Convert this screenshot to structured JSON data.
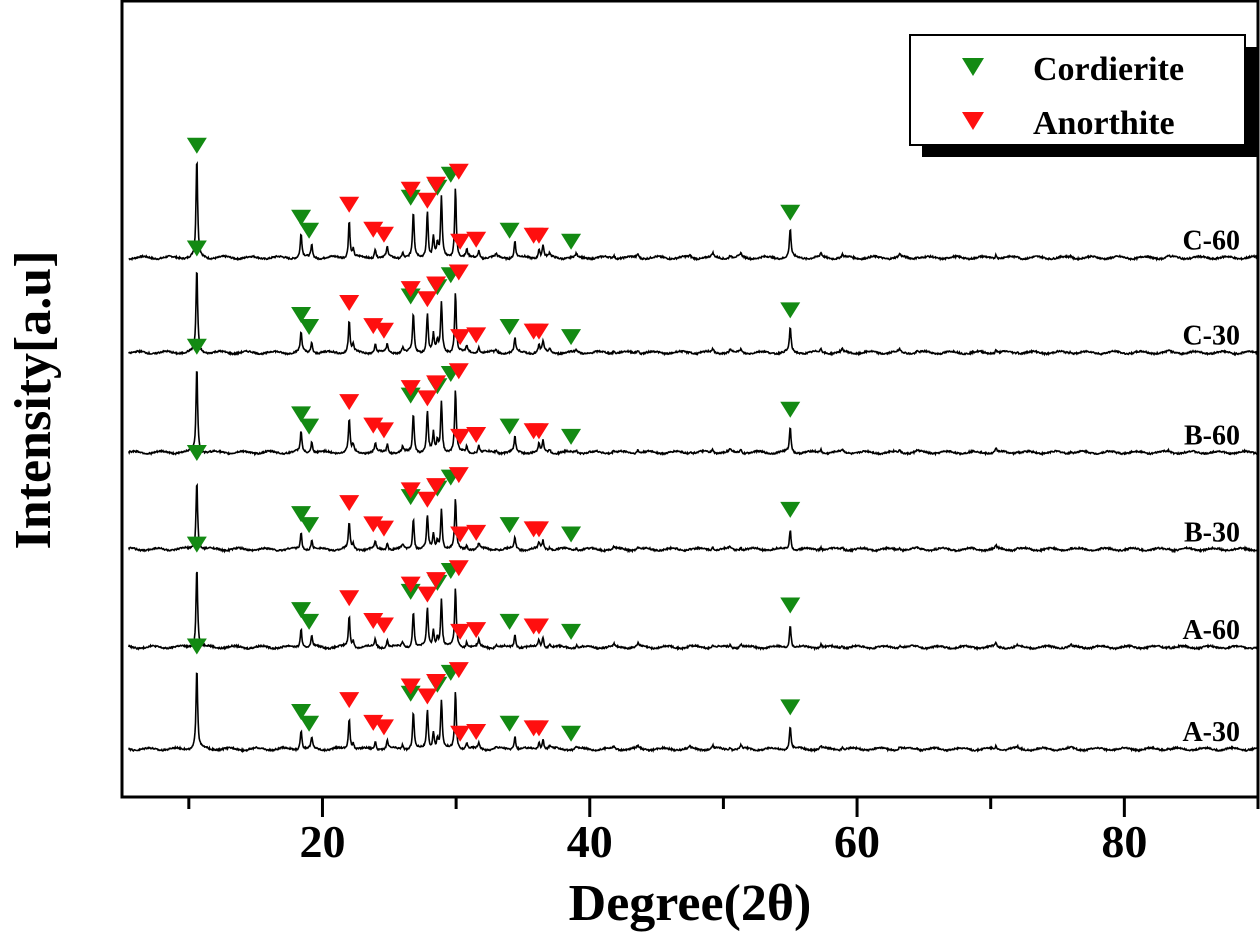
{
  "chart_data": {
    "type": "line",
    "xlabel": "Degree(2θ)",
    "ylabel": "Intensity[a.u]",
    "xlim": [
      5,
      90
    ],
    "ylim": [
      -48,
      749
    ],
    "xticks": [
      20,
      40,
      60,
      80
    ],
    "xminor_ticks": [
      10,
      30,
      50,
      70,
      90
    ],
    "yticks": [],
    "grid": false,
    "legend_placement": "top-right",
    "legend": [
      {
        "name": "Cordierite",
        "color": "#138a13",
        "marker": "triangle-down"
      },
      {
        "name": "Anorthite",
        "color": "#ff0f0f",
        "marker": "triangle-down"
      }
    ],
    "peaks": [
      [
        10.6,
        100
      ],
      [
        18.4,
        24
      ],
      [
        19.2,
        13
      ],
      [
        22.0,
        38
      ],
      [
        22.3,
        8
      ],
      [
        23.95,
        10
      ],
      [
        24.85,
        10
      ],
      [
        26.0,
        6
      ],
      [
        26.8,
        45
      ],
      [
        27.85,
        47
      ],
      [
        28.3,
        21
      ],
      [
        28.6,
        12
      ],
      [
        28.9,
        59
      ],
      [
        29.95,
        71
      ],
      [
        30.8,
        7
      ],
      [
        31.7,
        8
      ],
      [
        33.0,
        3
      ],
      [
        34.4,
        17
      ],
      [
        36.2,
        9
      ],
      [
        36.5,
        13
      ],
      [
        37.0,
        4
      ],
      [
        39.0,
        3
      ],
      [
        41.8,
        3
      ],
      [
        43.6,
        4
      ],
      [
        47.5,
        2
      ],
      [
        49.2,
        4
      ],
      [
        50.5,
        3
      ],
      [
        51.3,
        4
      ],
      [
        55.0,
        29
      ],
      [
        57.3,
        4
      ],
      [
        58.9,
        3
      ],
      [
        63.2,
        3
      ],
      [
        64.5,
        2
      ],
      [
        70.4,
        4
      ],
      [
        72.0,
        2
      ],
      [
        76.0,
        2
      ],
      [
        83.3,
        2
      ]
    ],
    "series": [
      {
        "name": "C-60",
        "offset": 492,
        "scale": 1.0
      },
      {
        "name": "C-30",
        "offset": 397,
        "scale": 0.85
      },
      {
        "name": "B-60",
        "offset": 297,
        "scale": 0.88
      },
      {
        "name": "B-30",
        "offset": 200,
        "scale": 0.7
      },
      {
        "name": "A-60",
        "offset": 102,
        "scale": 0.82
      },
      {
        "name": "A-30",
        "offset": 0,
        "scale": 0.82
      }
    ],
    "markers": {
      "Cordierite": [
        [
          10.6,
          104
        ],
        [
          18.4,
          32
        ],
        [
          19.0,
          19
        ],
        [
          26.6,
          52
        ],
        [
          28.6,
          62
        ],
        [
          29.6,
          75
        ],
        [
          34.0,
          19
        ],
        [
          38.6,
          8
        ],
        [
          55.0,
          37
        ]
      ],
      "Anorthite": [
        [
          22.0,
          45
        ],
        [
          23.8,
          20
        ],
        [
          24.6,
          15
        ],
        [
          26.6,
          60
        ],
        [
          27.85,
          49
        ],
        [
          28.5,
          65
        ],
        [
          30.2,
          78
        ],
        [
          30.3,
          8
        ],
        [
          31.5,
          10
        ],
        [
          35.8,
          14
        ],
        [
          36.2,
          14
        ]
      ]
    }
  }
}
